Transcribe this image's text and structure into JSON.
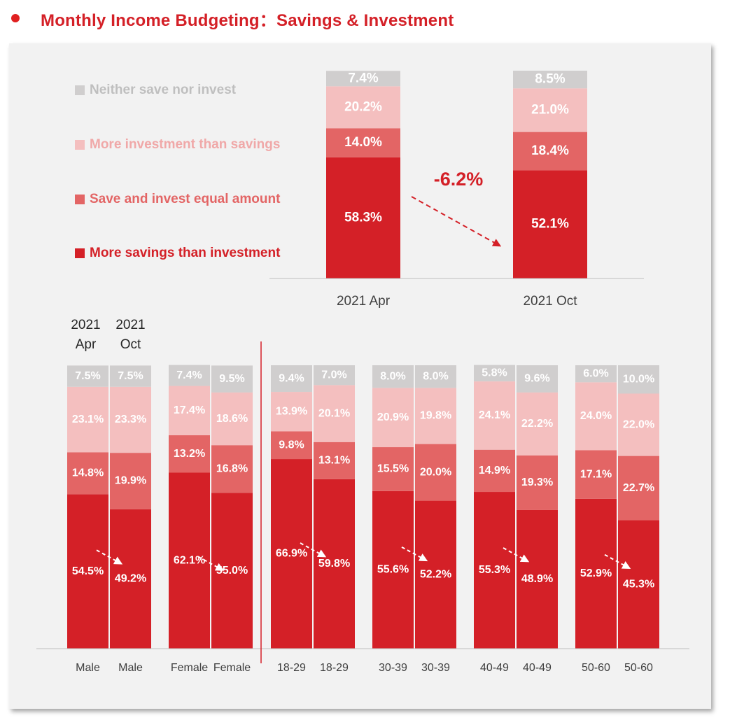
{
  "title": "Monthly Income Budgeting：Savings & Investment",
  "colors": {
    "brand": "#d42027",
    "more_savings": "#d42027",
    "equal": "#e36565",
    "more_investment": "#f4bfbf",
    "neither": "#d0cece",
    "panel_bg": "#f2f2f2"
  },
  "chart_data": [
    {
      "type": "bar",
      "stacked": true,
      "title": "Monthly Income Budgeting：Savings & Investment",
      "categories": [
        "2021 Apr",
        "2021 Oct"
      ],
      "series": [
        {
          "name": "More savings than investment",
          "key": "more_savings",
          "values": [
            58.3,
            52.1
          ],
          "labels": [
            "58.3%",
            "52.1%"
          ]
        },
        {
          "name": "Save and invest equal amount",
          "key": "equal",
          "values": [
            14.0,
            18.4
          ],
          "labels": [
            "14.0%",
            "18.4%"
          ]
        },
        {
          "name": "More investment than savings",
          "key": "more_investment",
          "values": [
            20.2,
            21.0
          ],
          "labels": [
            "20.2%",
            "21.0%"
          ]
        },
        {
          "name": "Neither save nor invest",
          "key": "neither",
          "values": [
            7.4,
            8.5
          ],
          "labels": [
            "7.4%",
            "8.5%"
          ]
        }
      ],
      "legend_order": [
        "neither",
        "more_investment",
        "equal",
        "more_savings"
      ],
      "legend_position": "left",
      "annotation": "-6.2%",
      "ylim": [
        0,
        100
      ]
    },
    {
      "type": "bar",
      "stacked": true,
      "period_header": [
        "2021 Apr",
        "2021 Oct"
      ],
      "categories": [
        "Male",
        "Male",
        "Female",
        "Female",
        "18-29",
        "18-29",
        "30-39",
        "30-39",
        "40-49",
        "40-49",
        "50-60",
        "50-60"
      ],
      "series": [
        {
          "name": "More savings than investment",
          "key": "more_savings",
          "values": [
            54.5,
            49.2,
            62.1,
            55.0,
            66.9,
            59.8,
            55.6,
            52.2,
            55.3,
            48.9,
            52.9,
            45.3
          ],
          "labels": [
            "54.5%",
            "49.2%",
            "62.1%",
            "55.0%",
            "66.9%",
            "59.8%",
            "55.6%",
            "52.2%",
            "55.3%",
            "48.9%",
            "52.9%",
            "45.3%"
          ]
        },
        {
          "name": "Save and invest equal amount",
          "key": "equal",
          "values": [
            14.8,
            19.9,
            13.2,
            16.8,
            9.8,
            13.1,
            15.5,
            20.0,
            14.9,
            19.3,
            17.1,
            22.7
          ],
          "labels": [
            "14.8%",
            "19.9%",
            "13.2%",
            "16.8%",
            "9.8%",
            "13.1%",
            "15.5%",
            "20.0%",
            "14.9%",
            "19.3%",
            "17.1%",
            "22.7%"
          ]
        },
        {
          "name": "More investment than savings",
          "key": "more_investment",
          "values": [
            23.1,
            23.3,
            17.4,
            18.6,
            13.9,
            20.1,
            20.9,
            19.8,
            24.1,
            22.2,
            24.0,
            22.0
          ],
          "labels": [
            "23.1%",
            "23.3%",
            "17.4%",
            "18.6%",
            "13.9%",
            "20.1%",
            "20.9%",
            "19.8%",
            "24.1%",
            "22.2%",
            "24.0%",
            "22.0%"
          ]
        },
        {
          "name": "Neither save nor invest",
          "key": "neither",
          "values": [
            7.5,
            7.5,
            7.4,
            9.5,
            9.4,
            7.0,
            8.0,
            8.0,
            5.8,
            9.6,
            6.0,
            10.0
          ],
          "labels": [
            "7.5%",
            "7.5%",
            "7.4%",
            "9.5%",
            "9.4%",
            "7.0%",
            "8.0%",
            "8.0%",
            "5.8%",
            "9.6%",
            "6.0%",
            "10.0%"
          ]
        }
      ],
      "ylim": [
        0,
        100
      ]
    }
  ]
}
